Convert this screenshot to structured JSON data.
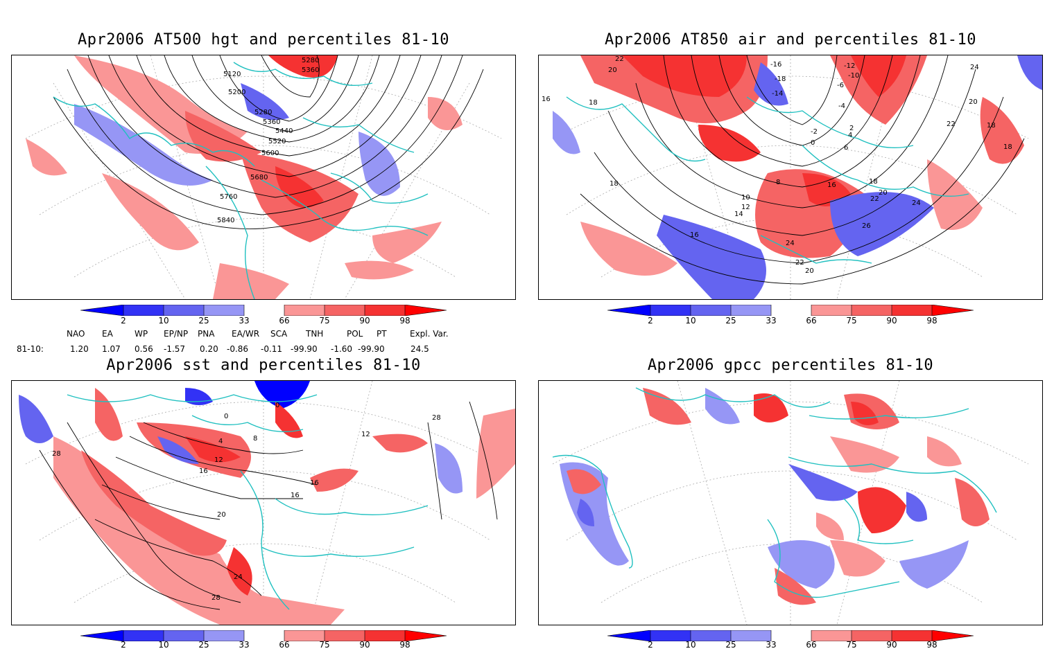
{
  "panels": {
    "tl": {
      "title": "Apr2006 AT500 hgt and percentiles 81-10",
      "contour_labels": [
        "5280",
        "5360",
        "5120",
        "5200",
        "5280",
        "5360",
        "5440",
        "5520",
        "5600",
        "5680",
        "5760",
        "5840"
      ]
    },
    "tr": {
      "title": "Apr2006 AT850 air and percentiles 81-10",
      "contour_labels": [
        "22",
        "20",
        "-16",
        "-18",
        "-14",
        "-12",
        "-10",
        "-6",
        "-4",
        "-2",
        "0",
        "18",
        "16",
        "18",
        "2",
        "4",
        "6",
        "8",
        "10",
        "12",
        "14",
        "16",
        "18",
        "20",
        "22",
        "24",
        "26",
        "24",
        "22",
        "20",
        "16",
        "18",
        "20",
        "22",
        "24",
        "18"
      ]
    },
    "bl": {
      "title": "Apr2006 sst and percentiles 81-10",
      "contour_labels": [
        "0",
        "0",
        "4",
        "8",
        "12",
        "16",
        "16",
        "16",
        "20",
        "24",
        "28",
        "28",
        "28",
        "12"
      ]
    },
    "br": {
      "title": "Apr2006 gpcc percentiles 81-10"
    }
  },
  "colorbar": {
    "labels": [
      "2",
      "10",
      "25",
      "33",
      "66",
      "75",
      "90",
      "98"
    ],
    "colors": {
      "below2": "#0000ff",
      "b2_10": "#3232f5",
      "b10_25": "#6464f0",
      "b25_33": "#9696f5",
      "a66_75": "#fa9696",
      "a75_90": "#f56464",
      "a90_98": "#f53232",
      "above98": "#ff0000"
    }
  },
  "indices": {
    "header": [
      "NAO",
      "EA",
      "WP",
      "EP/NP",
      "PNA",
      "EA/WR",
      "SCA",
      "TNH",
      "POL",
      "PT",
      "Expl. Var."
    ],
    "row_label": "81-10:",
    "values": [
      "1.20",
      "1.07",
      "0.56",
      "-1.57",
      "0.20",
      "-0.86",
      "-0.11",
      "-99.90",
      "-1.60",
      "-99.90",
      "24.5"
    ]
  },
  "style": {
    "coast_color": "#20c0c0",
    "contour_color": "#000000",
    "grid_color": "#999999"
  }
}
